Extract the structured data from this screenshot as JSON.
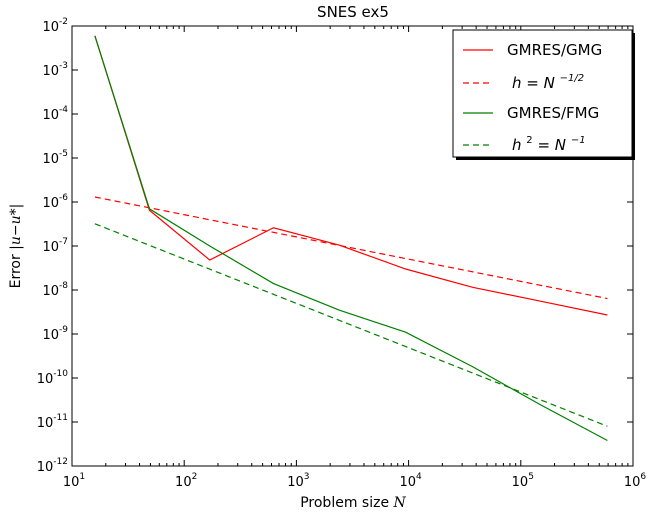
{
  "chart_data": {
    "type": "line",
    "title": "SNES ex5",
    "xlabel": {
      "text": "Problem size",
      "math": "N"
    },
    "ylabel": {
      "text": "Error",
      "math": "|u−u*|"
    },
    "xscale": "log",
    "yscale": "log",
    "xlim": [
      10,
      1000000
    ],
    "ylim": [
      1e-12,
      0.01
    ],
    "x_ticks": [
      {
        "base": "10",
        "exp": "1"
      },
      {
        "base": "10",
        "exp": "2"
      },
      {
        "base": "10",
        "exp": "3"
      },
      {
        "base": "10",
        "exp": "4"
      },
      {
        "base": "10",
        "exp": "5"
      },
      {
        "base": "10",
        "exp": "6"
      }
    ],
    "y_ticks": [
      {
        "base": "10",
        "exp": "-12"
      },
      {
        "base": "10",
        "exp": "-11"
      },
      {
        "base": "10",
        "exp": "-10"
      },
      {
        "base": "10",
        "exp": "-9"
      },
      {
        "base": "10",
        "exp": "-8"
      },
      {
        "base": "10",
        "exp": "-7"
      },
      {
        "base": "10",
        "exp": "-6"
      },
      {
        "base": "10",
        "exp": "-5"
      },
      {
        "base": "10",
        "exp": "-4"
      },
      {
        "base": "10",
        "exp": "-3"
      },
      {
        "base": "10",
        "exp": "-2"
      }
    ],
    "legend_position": "top-right",
    "series": [
      {
        "name": "GMRES/GMG",
        "color": "#ff0000",
        "dash": "solid",
        "x": [
          16,
          49,
          169,
          625,
          2401,
          9409,
          37249,
          148225,
          591361
        ],
        "y": [
          0.006,
          6.5e-07,
          4.8e-08,
          2.6e-07,
          1.05e-07,
          3e-08,
          1.15e-08,
          5.6e-09,
          2.7e-09
        ]
      },
      {
        "name": "h = N^-1/2",
        "legend": {
          "base": "h",
          "mid": "N",
          "sup": "−1/2"
        },
        "color": "#ff0000",
        "dash": "dashed",
        "x": [
          16,
          591361
        ],
        "y": [
          1.3e-06,
          6.4e-09
        ]
      },
      {
        "name": "GMRES/FMG",
        "color": "#008000",
        "dash": "solid",
        "x": [
          16,
          49,
          169,
          625,
          2401,
          9409,
          37249,
          148225,
          591361
        ],
        "y": [
          0.006,
          7e-07,
          1e-07,
          1.4e-08,
          3.5e-09,
          1.1e-09,
          1.8e-10,
          2.5e-11,
          3.8e-12
        ]
      },
      {
        "name": "h^2 = N^-1",
        "legend": {
          "base": "h",
          "base_sup": "2",
          "mid": "N",
          "sup": "−1"
        },
        "color": "#008000",
        "dash": "dashed",
        "x": [
          16,
          591361
        ],
        "y": [
          3.2e-07,
          8e-12
        ]
      }
    ]
  }
}
